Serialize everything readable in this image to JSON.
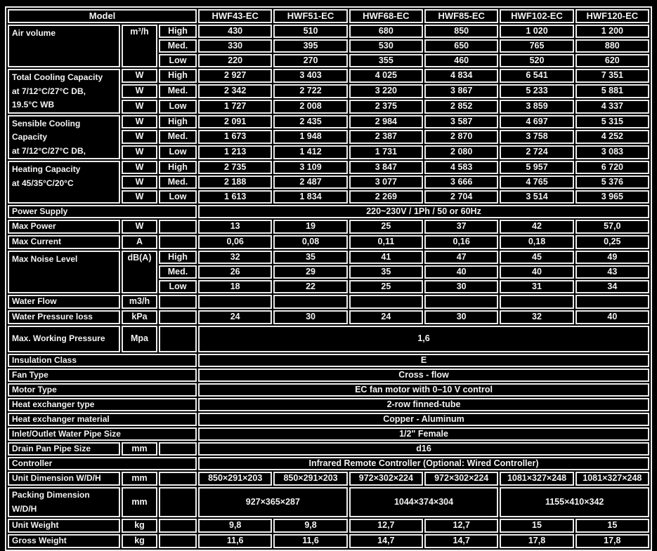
{
  "table": {
    "header": {
      "model_label": "Model",
      "models": [
        "HWF43-EC",
        "HWF51-EC",
        "HWF68-EC",
        "HWF85-EC",
        "HWF102-EC",
        "HWF120-EC"
      ]
    },
    "colors": {
      "background": "#000000",
      "grid": "#ececec",
      "text": "#f3f3f3"
    },
    "sections": [
      {
        "type": "group",
        "label_lines": [
          "Air volume"
        ],
        "unit": "m³/h",
        "unit_shared": true,
        "rows": [
          {
            "speed": "High",
            "values": [
              "430",
              "510",
              "680",
              "850",
              "1 020",
              "1 200"
            ]
          },
          {
            "speed": "Med.",
            "values": [
              "330",
              "395",
              "530",
              "650",
              "765",
              "880"
            ]
          },
          {
            "speed": "Low",
            "values": [
              "220",
              "270",
              "355",
              "460",
              "520",
              "620"
            ]
          }
        ]
      },
      {
        "type": "group",
        "label_lines": [
          "Total Cooling Capacity",
          "at 7/12°C/27°C DB,",
          "19.5°C WB"
        ],
        "unit": "W",
        "unit_shared": false,
        "rows": [
          {
            "speed": "High",
            "values": [
              "2 927",
              "3 403",
              "4 025",
              "4 834",
              "6 541",
              "7 351"
            ]
          },
          {
            "speed": "Med.",
            "values": [
              "2 342",
              "2 722",
              "3 220",
              "3 867",
              "5 233",
              "5 881"
            ]
          },
          {
            "speed": "Low",
            "values": [
              "1 727",
              "2 008",
              "2 375",
              "2 852",
              "3 859",
              "4 337"
            ]
          }
        ]
      },
      {
        "type": "group",
        "label_lines": [
          "Sensible Cooling",
          "Capacity",
          "at 7/12°C/27°C DB,"
        ],
        "unit": "W",
        "unit_shared": false,
        "rows": [
          {
            "speed": "High",
            "values": [
              "2 091",
              "2 435",
              "2 984",
              "3 587",
              "4 697",
              "5 315"
            ]
          },
          {
            "speed": "Med.",
            "values": [
              "1 673",
              "1 948",
              "2 387",
              "2 870",
              "3 758",
              "4 252"
            ]
          },
          {
            "speed": "Low",
            "values": [
              "1 213",
              "1 412",
              "1 731",
              "2 080",
              "2 724",
              "3 083"
            ]
          }
        ]
      },
      {
        "type": "group",
        "label_lines": [
          "Heating Capacity",
          "at 45/35°C/20°C"
        ],
        "unit": "W",
        "unit_shared": false,
        "rows": [
          {
            "speed": "High",
            "values": [
              "2 735",
              "3 109",
              "3 847",
              "4 583",
              "5 957",
              "6 720"
            ]
          },
          {
            "speed": "Med.",
            "values": [
              "2 188",
              "2 487",
              "3 077",
              "3 666",
              "4 765",
              "5 376"
            ]
          },
          {
            "speed": "Low",
            "values": [
              "1 613",
              "1 834",
              "2 269",
              "2 704",
              "3 514",
              "3 965"
            ]
          }
        ]
      },
      {
        "type": "fullspan",
        "label": "Power Supply",
        "value": "220~230V / 1Ph / 50 or 60Hz"
      },
      {
        "type": "simple",
        "label": "Max Power",
        "unit": "W",
        "values": [
          "13",
          "19",
          "25",
          "37",
          "42",
          "57,0"
        ]
      },
      {
        "type": "simple",
        "label": "Max Current",
        "unit": "A",
        "values": [
          "0,06",
          "0,08",
          "0,11",
          "0,16",
          "0,18",
          "0,25"
        ]
      },
      {
        "type": "group",
        "label_lines": [
          "Max Noise Level"
        ],
        "unit": "dB(A)",
        "unit_shared": true,
        "rows": [
          {
            "speed": "High",
            "values": [
              "32",
              "35",
              "41",
              "47",
              "45",
              "49"
            ]
          },
          {
            "speed": "Med.",
            "values": [
              "26",
              "29",
              "35",
              "40",
              "40",
              "43"
            ]
          },
          {
            "speed": "Low",
            "values": [
              "18",
              "22",
              "25",
              "30",
              "31",
              "34"
            ]
          }
        ]
      },
      {
        "type": "simple",
        "label": "Water Flow",
        "unit": "m3/h",
        "values": [
          "",
          "",
          "",
          "",
          "",
          ""
        ]
      },
      {
        "type": "simple",
        "label": "Water Pressure loss",
        "unit": "kPa",
        "values": [
          "24",
          "30",
          "24",
          "30",
          "32",
          "40"
        ]
      },
      {
        "type": "merged",
        "label": "Max. Working Pressure",
        "unit": "Mpa",
        "value": "1,6",
        "tall": true
      },
      {
        "type": "fullspan",
        "label": "Insulation Class",
        "value": "E"
      },
      {
        "type": "fullspan",
        "label": "Fan Type",
        "value": "Cross - flow"
      },
      {
        "type": "fullspan",
        "label": "Motor Type",
        "value": "EC fan motor with 0–10 V control"
      },
      {
        "type": "fullspan",
        "label": "Heat exchanger type",
        "value": "2-row finned-tube"
      },
      {
        "type": "fullspan",
        "label": "Heat exchanger material",
        "value": "Copper - Aluminum"
      },
      {
        "type": "fullspan",
        "label": "Inlet/Outlet Water Pipe Size",
        "value": "1/2\" Female"
      },
      {
        "type": "merged",
        "label": "Drain Pan Pipe Size",
        "unit": "mm",
        "value": "d16",
        "tall": false
      },
      {
        "type": "fullspan",
        "label": "Controller",
        "value": "Infrared Remote Controller (Optional: Wired Controller)"
      },
      {
        "type": "simple",
        "label": "Unit Dimension W/D/H",
        "unit": "mm",
        "values": [
          "850×291×203",
          "850×291×203",
          "972×302×224",
          "972×302×224",
          "1081×327×248",
          "1081×327×248"
        ]
      },
      {
        "type": "paired",
        "label_lines": [
          "Packing Dimension",
          "W/D/H"
        ],
        "unit": "mm",
        "values": [
          "927×365×287",
          "1044×374×304",
          "1155×410×342"
        ],
        "tall": true
      },
      {
        "type": "simple",
        "label": "Unit Weight",
        "unit": "kg",
        "values": [
          "9,8",
          "9,8",
          "12,7",
          "12,7",
          "15",
          "15"
        ]
      },
      {
        "type": "simple",
        "label": "Gross Weight",
        "unit": "kg",
        "values": [
          "11,6",
          "11,6",
          "14,7",
          "14,7",
          "17,8",
          "17,8"
        ]
      }
    ]
  }
}
